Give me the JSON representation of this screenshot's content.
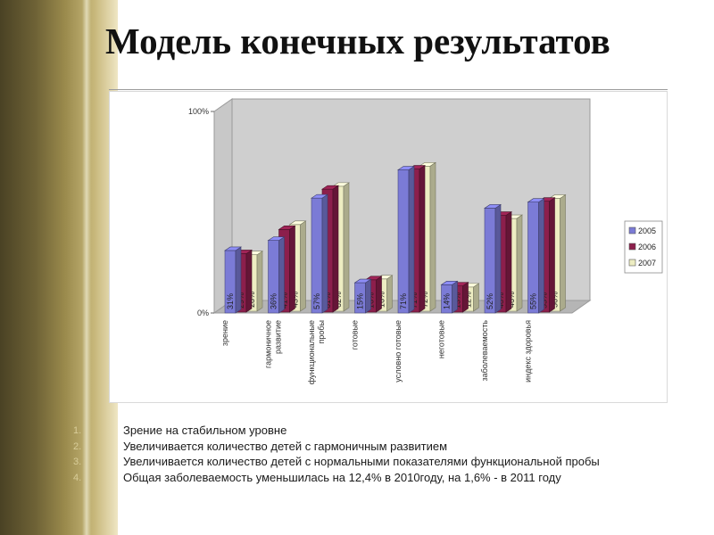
{
  "slide": {
    "title": "Модель конечных результатов",
    "accent_color": "#8b7d46"
  },
  "chart_data": {
    "type": "bar",
    "categories": [
      "зрение",
      "гармоничное развитие",
      "функциональные пробы",
      "готовые",
      "условно готовые",
      "неготовые",
      "заболеваемость",
      "индекс здоровья"
    ],
    "category_lines": [
      [
        "зрение"
      ],
      [
        "гармоничное",
        "развитие"
      ],
      [
        "функциональные",
        "пробы"
      ],
      [
        "готовые"
      ],
      [
        "условно готовые"
      ],
      [
        "неготовые"
      ],
      [
        "заболеваемость"
      ],
      [
        "индекс здоровья"
      ]
    ],
    "series": [
      {
        "name": "2005",
        "color": "#7b7bd6",
        "values": [
          31,
          36,
          57,
          15,
          71,
          14,
          52,
          55
        ],
        "labels": [
          "31%",
          "36%",
          "57%",
          "15%",
          "71%",
          "14%",
          "52%",
          "55%"
        ]
      },
      {
        "name": "2006",
        "color": "#8c1f4c",
        "values": [
          29,
          41,
          61,
          16,
          71,
          13,
          48,
          55
        ],
        "labels": [
          "29%",
          "41%",
          "61%",
          "16%",
          "71%",
          "13%",
          "48%",
          "55%"
        ]
      },
      {
        "name": "2007",
        "color": "#ededc2",
        "values": [
          28,
          43,
          62,
          16,
          72,
          12,
          46,
          56
        ],
        "labels": [
          "28%",
          "43%",
          "62%",
          "16%",
          "72%",
          "12%",
          "46%",
          "56%"
        ]
      }
    ],
    "y_ticks": [
      "0%",
      "100%"
    ],
    "ylim": [
      0,
      100
    ],
    "grid": false,
    "legend": "right",
    "style": "3d-cylinder"
  },
  "notes": [
    {
      "num": "1.",
      "text": "Зрение на стабильном уровне"
    },
    {
      "num": "2.",
      "text": "Увеличивается количество детей с гармоничным развитием"
    },
    {
      "num": "3.",
      "text": "Увеличивается количество детей с нормальными показателями функциональной пробы"
    },
    {
      "num": "4.",
      "text": "Общая заболеваемость уменьшилась на 12,4% в 2010году, на 1,6% - в 2011 году"
    }
  ]
}
